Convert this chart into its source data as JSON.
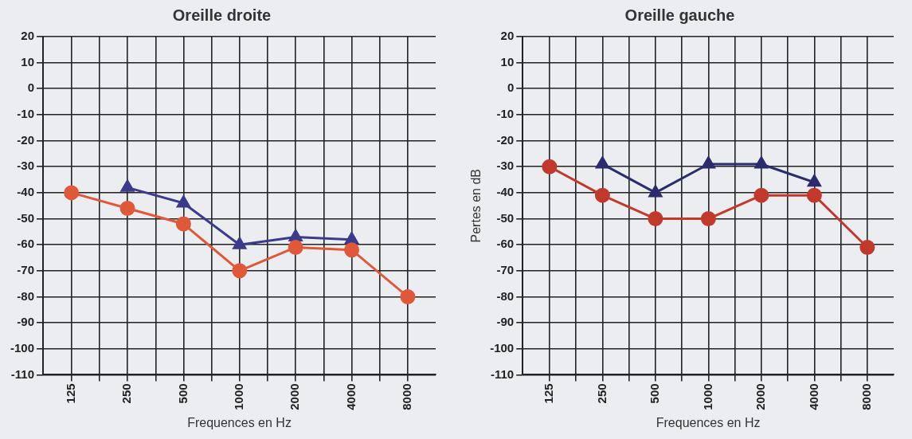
{
  "chart_data": [
    {
      "type": "line",
      "title": "Oreille droite",
      "xlabel": "Frequences en Hz",
      "log": "x",
      "x": [
        125,
        250,
        500,
        1000,
        2000,
        4000,
        8000
      ],
      "series": [
        {
          "color": "#e0583a",
          "marker": "circle",
          "values": [
            -40,
            -46,
            -52,
            -70,
            -61,
            -62,
            -80
          ]
        },
        {
          "color": "#3b3b8c",
          "marker": "triangle",
          "x": [
            250,
            500,
            1000,
            2000,
            4000
          ],
          "values": [
            -38,
            -44,
            -60,
            -57,
            -58
          ]
        }
      ],
      "xlim": [
        88,
        11300
      ],
      "xticks": [
        125,
        {
          "value": 177,
          "label": null
        },
        250,
        {
          "value": 354,
          "label": null
        },
        500,
        {
          "value": 707,
          "label": null
        },
        1000,
        {
          "value": 1414,
          "label": null
        },
        2000,
        {
          "value": 2828,
          "label": null
        },
        4000,
        {
          "value": 5657,
          "label": null
        },
        8000
      ],
      "ylim": [
        -110,
        20
      ],
      "yticks": [
        20,
        10,
        0,
        -10,
        -20,
        -30,
        -40,
        -50,
        -60,
        -70,
        -80,
        -90,
        -100,
        -110
      ],
      "grid": true,
      "line_style": "solid"
    },
    {
      "type": "line",
      "title": "Oreille gauche",
      "xlabel": "Frequences en Hz",
      "ylabel": "Pertes en dB",
      "log": "x",
      "x": [
        125,
        250,
        500,
        1000,
        2000,
        4000,
        8000
      ],
      "series": [
        {
          "color": "#c0392b",
          "marker": "circle",
          "values": [
            -30,
            -41,
            -50,
            -50,
            -41,
            -41,
            -61
          ]
        },
        {
          "color": "#2b2b6e",
          "marker": "triangle",
          "x": [
            250,
            500,
            1000,
            2000,
            4000
          ],
          "values": [
            -29,
            -40,
            -29,
            -29,
            -36
          ]
        }
      ],
      "xlim": [
        88,
        11300
      ],
      "xticks": [
        125,
        {
          "value": 177,
          "label": null
        },
        250,
        {
          "value": 354,
          "label": null
        },
        500,
        {
          "value": 707,
          "label": null
        },
        1000,
        {
          "value": 1414,
          "label": null
        },
        2000,
        {
          "value": 2828,
          "label": null
        },
        4000,
        {
          "value": 5657,
          "label": null
        },
        8000
      ],
      "ylim": [
        -110,
        20
      ],
      "yticks": [
        20,
        10,
        0,
        -10,
        -20,
        -30,
        -40,
        -50,
        -60,
        -70,
        -80,
        -90,
        -100,
        -110
      ],
      "grid": true,
      "line_style": "solid"
    }
  ]
}
